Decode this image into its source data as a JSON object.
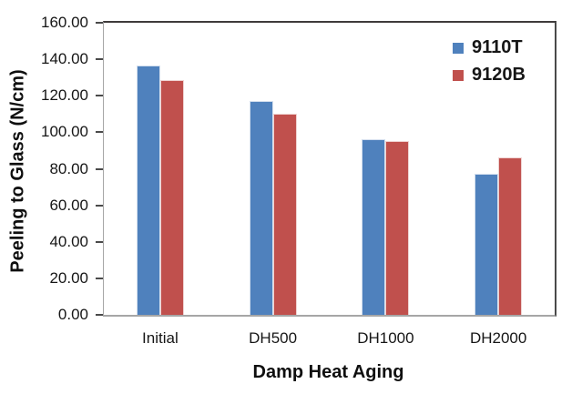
{
  "chart_data": {
    "type": "bar",
    "title": "",
    "categories": [
      "Initial",
      "DH500",
      "DH1000",
      "DH2000"
    ],
    "series": [
      {
        "name": "9110T",
        "color": "#4f81bd",
        "values": [
          136.5,
          117.0,
          96.0,
          77.5
        ]
      },
      {
        "name": "9120B",
        "color": "#c0504d",
        "values": [
          128.5,
          110.0,
          95.0,
          86.0
        ]
      }
    ],
    "xlabel": "Damp Heat Aging",
    "ylabel": "Peeling to Glass (N/cm)",
    "ylim": [
      0,
      160
    ],
    "ytick_step": 20,
    "ytick_labels": [
      "0.00",
      "20.00",
      "40.00",
      "60.00",
      "80.00",
      "100.00",
      "120.00",
      "140.00",
      "160.00"
    ],
    "grid": false,
    "legend_position": "inside-top-right",
    "axis_color": "#a6a6a6",
    "border_color": "#3f3b3b"
  }
}
